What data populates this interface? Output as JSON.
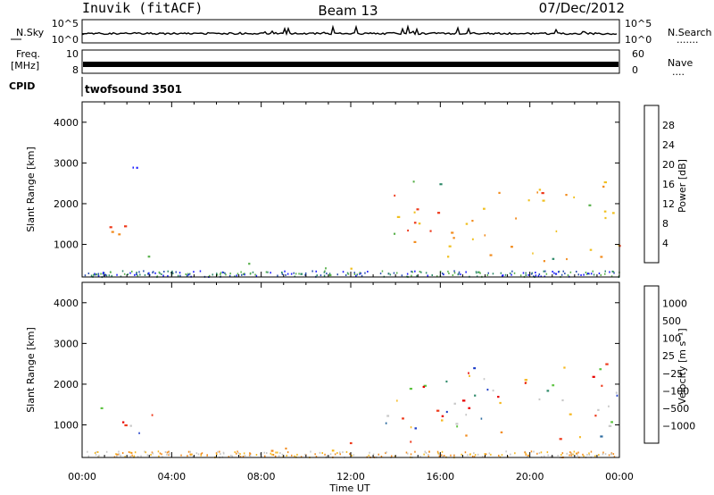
{
  "header": {
    "station": "Inuvik (fitACF)",
    "beam": "Beam 13",
    "date": "07/Dec/2012"
  },
  "strips": {
    "nsky": {
      "label": "N.Sky",
      "ticks": [
        "10^5",
        "10^0"
      ],
      "right_ticks": [
        "10^5",
        "10^0"
      ],
      "right_label": "N.Search",
      "right_dots": "......."
    },
    "freq": {
      "label_line1": "Freq.",
      "label_line2": "[MHz]",
      "ticks": [
        "10",
        "8"
      ],
      "right_ticks": [
        "60",
        "0"
      ],
      "right_label": "Nave",
      "right_dots": "...."
    },
    "cpid": {
      "label": "CPID",
      "value": "twofsound 3501"
    }
  },
  "chart_data": [
    {
      "type": "heatmap",
      "title": "",
      "xlabel": "",
      "ylabel": "Slant Range [km]",
      "x_ticks": [
        "00:00",
        "04:00",
        "08:00",
        "12:00",
        "16:00",
        "20:00",
        "00:00"
      ],
      "y_ticks": [
        "1000",
        "2000",
        "3000",
        "4000"
      ],
      "ylim": [
        200,
        4500
      ],
      "colorbar": {
        "label": "Power [dB]",
        "ticks": [
          "4",
          "8",
          "12",
          "16",
          "20",
          "24",
          "28"
        ],
        "colors": [
          "#1a1aff",
          "#2a4fb0",
          "#2f8a6a",
          "#58b04a",
          "#f0c020",
          "#f28c1e",
          "#ee3a1c",
          "#e80000"
        ]
      },
      "regions": [
        {
          "t": [
            0.0,
            3.2
          ],
          "r": [
            700,
            1800
          ],
          "level": "high"
        },
        {
          "t": [
            1.5,
            3.5
          ],
          "r": [
            2700,
            3200
          ],
          "level": "low"
        },
        {
          "t": [
            7.0,
            12.5
          ],
          "r": [
            250,
            650
          ],
          "level": "mid"
        },
        {
          "t": [
            13.5,
            24.0
          ],
          "r": [
            600,
            2600
          ],
          "level": "high"
        }
      ]
    },
    {
      "type": "heatmap",
      "title": "",
      "xlabel": "Time UT",
      "ylabel": "Slant Range [km]",
      "x_ticks": [
        "00:00",
        "04:00",
        "08:00",
        "12:00",
        "16:00",
        "20:00",
        "00:00"
      ],
      "y_ticks": [
        "1000",
        "2000",
        "3000",
        "4000"
      ],
      "ylim": [
        200,
        4500
      ],
      "colorbar": {
        "label": "Velocity [m s⁻¹]",
        "ticks": [
          "1000",
          "500",
          "100",
          "25",
          "−25",
          "−100",
          "−500",
          "−1000"
        ],
        "colors": [
          "#1f3fc8",
          "#2d6ca0",
          "#2f8a6a",
          "#5ec442",
          "#c8c8c8",
          "#f6b820",
          "#f28c1e",
          "#ee3a1c",
          "#e80000"
        ]
      },
      "regions": [
        {
          "t": [
            0.0,
            3.2
          ],
          "r": [
            700,
            1800
          ],
          "level": "mixed"
        },
        {
          "t": [
            7.0,
            12.5
          ],
          "r": [
            250,
            650
          ],
          "level": "negative"
        },
        {
          "t": [
            13.5,
            24.0
          ],
          "r": [
            600,
            2600
          ],
          "level": "mixed"
        }
      ]
    }
  ]
}
